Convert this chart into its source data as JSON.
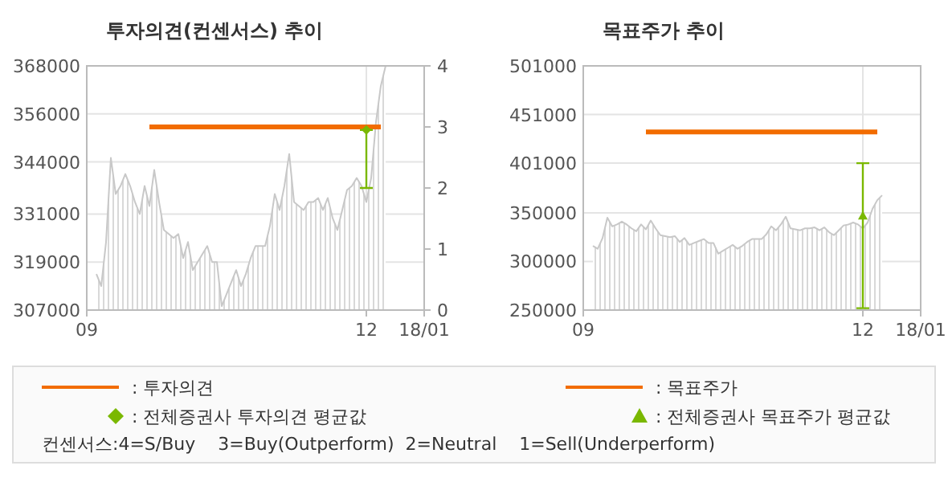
{
  "chart_data": [
    {
      "type": "area",
      "title": "투자의견(컨센서스) 추이",
      "categories": [
        "09",
        null,
        null,
        null,
        null,
        null,
        null,
        null,
        null,
        null,
        null,
        null,
        null,
        null,
        null,
        null,
        null,
        null,
        null,
        null,
        null,
        null,
        null,
        null,
        null,
        null,
        null,
        null,
        null,
        null,
        null,
        null,
        null,
        null,
        null,
        null,
        null,
        null,
        null,
        null,
        null,
        null,
        null,
        null,
        null,
        null,
        null,
        null,
        null,
        null,
        null,
        null,
        null,
        null,
        null,
        null,
        null,
        null,
        "12",
        null,
        null,
        null,
        null,
        null,
        null,
        null,
        null,
        null,
        null,
        null,
        "18/01"
      ],
      "ylim": [
        307000,
        368000
      ],
      "yticks": [
        307000,
        319000,
        331000,
        344000,
        356000,
        368000
      ],
      "y2lim": [
        0,
        4
      ],
      "y2ticks": [
        0,
        1,
        2,
        3,
        4
      ],
      "grid": true,
      "legend": "bottom",
      "annotations": [
        "컨센서스:4=S/Buy    3=Buy(Outperform)  2=Neutral    1=Sell(Underperform)"
      ],
      "series": [
        {
          "color": "#c8c8c8",
          "values": [
            null,
            null,
            316000,
            313000,
            324000,
            345000,
            336000,
            338000,
            341000,
            338000,
            334000,
            331000,
            338000,
            333000,
            342000,
            334000,
            327000,
            326000,
            325000,
            326000,
            320000,
            324000,
            317000,
            319000,
            321000,
            323000,
            319000,
            319000,
            308000,
            311000,
            314000,
            317000,
            313000,
            316000,
            320000,
            323000,
            323000,
            323000,
            328000,
            336000,
            332000,
            338000,
            346000,
            334000,
            333000,
            332000,
            334000,
            334000,
            335000,
            332000,
            335000,
            330000,
            327000,
            332000,
            337000,
            338000,
            340000,
            338000,
            334000,
            340000,
            354000,
            363000,
            368000,
            null,
            null,
            null,
            null,
            null,
            null,
            null,
            null
          ]
        },
        {
          "type": "line",
          "name": ": 투자의견",
          "color": "#f26c00",
          "axis": "y2",
          "values": [
            null,
            null,
            null,
            null,
            null,
            null,
            null,
            null,
            null,
            null,
            null,
            null,
            null,
            3,
            3,
            3,
            3,
            3,
            3,
            3,
            3,
            3,
            3,
            3,
            3,
            3,
            3,
            3,
            3,
            3,
            3,
            3,
            3,
            3,
            3,
            3,
            3,
            3,
            3,
            3,
            3,
            3,
            3,
            3,
            3,
            3,
            3,
            3,
            3,
            3,
            3,
            3,
            3,
            3,
            3,
            3,
            3,
            3,
            3,
            3,
            3,
            3,
            null,
            null,
            null,
            null,
            null,
            null,
            null,
            null,
            null
          ]
        },
        {
          "type": "scatter",
          "name": ": 전체증권사 투자의견 평균값",
          "color": "#7ab800",
          "axis": "y2",
          "marker": "diamond",
          "values": [
            null,
            null,
            null,
            null,
            null,
            null,
            null,
            null,
            null,
            null,
            null,
            null,
            null,
            null,
            null,
            null,
            null,
            null,
            null,
            null,
            null,
            null,
            null,
            null,
            null,
            null,
            null,
            null,
            null,
            null,
            null,
            null,
            null,
            null,
            null,
            null,
            null,
            null,
            null,
            null,
            null,
            null,
            null,
            null,
            null,
            null,
            null,
            null,
            null,
            null,
            null,
            null,
            null,
            null,
            null,
            null,
            null,
            null,
            2.95,
            null,
            null,
            null,
            null,
            null,
            null,
            null,
            null,
            null,
            null,
            null,
            null
          ],
          "errors": [
            null,
            null,
            null,
            null,
            null,
            null,
            null,
            null,
            null,
            null,
            null,
            null,
            null,
            null,
            null,
            null,
            null,
            null,
            null,
            null,
            null,
            null,
            null,
            null,
            null,
            null,
            null,
            null,
            null,
            null,
            null,
            null,
            null,
            null,
            null,
            null,
            null,
            null,
            null,
            null,
            null,
            null,
            null,
            null,
            null,
            null,
            null,
            null,
            null,
            null,
            null,
            null,
            null,
            null,
            null,
            null,
            null,
            null,
            [
              2,
              2.95
            ],
            null,
            null,
            null,
            null,
            null,
            null,
            null,
            null,
            null,
            null,
            null,
            null
          ]
        }
      ]
    },
    {
      "type": "area",
      "title": "목표주가 추이",
      "categories": [
        "09",
        null,
        null,
        null,
        null,
        null,
        null,
        null,
        null,
        null,
        null,
        null,
        null,
        null,
        null,
        null,
        null,
        null,
        null,
        null,
        null,
        null,
        null,
        null,
        null,
        null,
        null,
        null,
        null,
        null,
        null,
        null,
        null,
        null,
        null,
        null,
        null,
        null,
        null,
        null,
        null,
        null,
        null,
        null,
        null,
        null,
        null,
        null,
        null,
        null,
        null,
        null,
        null,
        null,
        null,
        null,
        null,
        null,
        "12",
        null,
        null,
        null,
        null,
        null,
        null,
        null,
        null,
        null,
        null,
        null,
        "18/01"
      ],
      "ylim": [
        250000,
        501000
      ],
      "yticks": [
        250000,
        300000,
        350000,
        401000,
        451000,
        501000
      ],
      "grid": true,
      "legend": "bottom",
      "series": [
        {
          "color": "#c8c8c8",
          "values": [
            null,
            null,
            316000,
            313000,
            324000,
            345000,
            336000,
            338000,
            341000,
            338000,
            334000,
            331000,
            338000,
            333000,
            342000,
            334000,
            327000,
            326000,
            325000,
            326000,
            320000,
            324000,
            317000,
            319000,
            321000,
            323000,
            319000,
            319000,
            308000,
            311000,
            314000,
            317000,
            313000,
            316000,
            320000,
            323000,
            323000,
            323000,
            328000,
            336000,
            332000,
            338000,
            346000,
            334000,
            333000,
            332000,
            334000,
            334000,
            335000,
            332000,
            335000,
            330000,
            327000,
            332000,
            337000,
            338000,
            340000,
            338000,
            334000,
            340000,
            354000,
            363000,
            368000,
            null,
            null,
            null,
            null,
            null,
            null,
            null,
            null
          ]
        },
        {
          "type": "line",
          "name": ": 목표주가",
          "color": "#f26c00",
          "values": [
            null,
            null,
            null,
            null,
            null,
            null,
            null,
            null,
            null,
            null,
            null,
            null,
            null,
            433000,
            433000,
            433000,
            433000,
            433000,
            433000,
            433000,
            433000,
            433000,
            433000,
            433000,
            433000,
            433000,
            433000,
            433000,
            433000,
            433000,
            433000,
            433000,
            433000,
            433000,
            433000,
            433000,
            433000,
            433000,
            433000,
            433000,
            433000,
            433000,
            433000,
            433000,
            433000,
            433000,
            433000,
            433000,
            433000,
            433000,
            433000,
            433000,
            433000,
            433000,
            433000,
            433000,
            433000,
            433000,
            433000,
            433000,
            433000,
            433000,
            null,
            null,
            null,
            null,
            null,
            null,
            null,
            null,
            null
          ]
        },
        {
          "type": "scatter",
          "name": ": 전체증권사 목표주가 평균값",
          "color": "#7ab800",
          "marker": "triangle",
          "values": [
            null,
            null,
            null,
            null,
            null,
            null,
            null,
            null,
            null,
            null,
            null,
            null,
            null,
            null,
            null,
            null,
            null,
            null,
            null,
            null,
            null,
            null,
            null,
            null,
            null,
            null,
            null,
            null,
            null,
            null,
            null,
            null,
            null,
            null,
            null,
            null,
            null,
            null,
            null,
            null,
            null,
            null,
            null,
            null,
            null,
            null,
            null,
            null,
            null,
            null,
            null,
            null,
            null,
            null,
            null,
            null,
            null,
            null,
            347000,
            null,
            null,
            null,
            null,
            null,
            null,
            null,
            null,
            null,
            null,
            null,
            null
          ],
          "errors": [
            null,
            null,
            null,
            null,
            null,
            null,
            null,
            null,
            null,
            null,
            null,
            null,
            null,
            null,
            null,
            null,
            null,
            null,
            null,
            null,
            null,
            null,
            null,
            null,
            null,
            null,
            null,
            null,
            null,
            null,
            null,
            null,
            null,
            null,
            null,
            null,
            null,
            null,
            null,
            null,
            null,
            null,
            null,
            null,
            null,
            null,
            null,
            null,
            null,
            null,
            null,
            null,
            null,
            null,
            null,
            null,
            null,
            null,
            [
              252000,
              401000
            ],
            null,
            null,
            null,
            null,
            null,
            null,
            null,
            null,
            null,
            null,
            null,
            null
          ]
        }
      ]
    }
  ]
}
